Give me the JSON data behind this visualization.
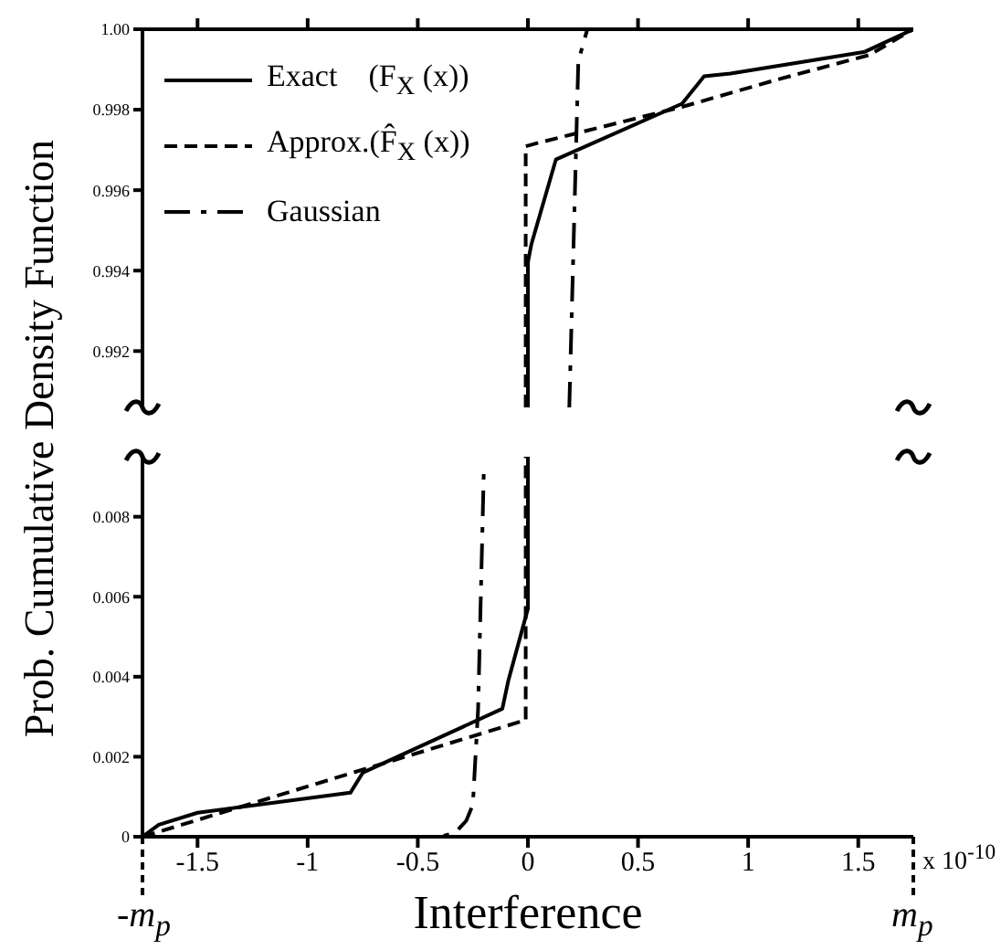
{
  "chart_data": [
    {
      "type": "line",
      "ylabel": "Prob. Cumulative Density Function",
      "xlim": [
        -1.75,
        1.75
      ],
      "xticks": [
        -1.5,
        -1,
        -0.5,
        0,
        0.5,
        1,
        1.5
      ],
      "ylim": [
        0.9906,
        1
      ],
      "yticks": [
        0.992,
        0.994,
        0.996,
        0.998,
        {
          "value": 1,
          "label": "1.00"
        }
      ],
      "tick_labels": "y",
      "legend": "top left",
      "series": [
        {
          "name": "Exact    (F$_{X}$ (x))",
          "color": "#000000",
          "line_style": "solid",
          "x": [
            0,
            0,
            0.016,
            0.127,
            0.7,
            0.8,
            0.92,
            1.53,
            1.75
          ],
          "values": [
            0.9906,
            0.99421,
            0.99466,
            0.99676,
            0.99815,
            0.99883,
            0.9989,
            0.99944,
            1
          ]
        },
        {
          "name": "Approx.(F̂$_{X}$ (x))",
          "color": "#000000",
          "line_style": "dashed",
          "x": [
            -0.01,
            -0.01,
            0.05,
            0.7,
            1.14,
            1.55,
            1.75
          ],
          "values": [
            0.9906,
            0.99709,
            0.99718,
            0.99807,
            0.99876,
            0.99936,
            1
          ]
        },
        {
          "name": "Gaussian",
          "color": "#000000",
          "line_style": "dashdot",
          "x": [
            0.188,
            0.229,
            0.27,
            1.75
          ],
          "values": [
            0.9906,
            0.99921,
            1,
            1
          ]
        }
      ]
    },
    {
      "type": "line",
      "xlabel": "Interference",
      "xlim": [
        -1.75,
        1.75
      ],
      "xticks": [
        -1.5,
        -1,
        -0.5,
        0,
        0.5,
        1,
        1.5
      ],
      "ylim": [
        0,
        0.0095
      ],
      "yticks": [
        0,
        0.002,
        0.004,
        0.006,
        0.008
      ],
      "annotations": [
        "x 10$^{-10}$",
        "-m$_{p}$",
        "m$_{p}$"
      ],
      "series": [
        {
          "color": "#000000",
          "line_style": "solid",
          "x": [
            -1.75,
            -1.676,
            -1.5,
            -0.806,
            -0.75,
            -0.116,
            -0.089,
            0,
            0
          ],
          "values": [
            0,
            0.0003,
            0.0006,
            0.0011,
            0.0016,
            0.0032,
            0.0039,
            0.0057,
            0.0095
          ]
        },
        {
          "color": "#000000",
          "line_style": "dashed",
          "x": [
            -1.75,
            -0.02,
            -0.01,
            -0.01
          ],
          "values": [
            0,
            0.0029,
            0.0029,
            0.0095
          ]
        },
        {
          "color": "#000000",
          "line_style": "dashdot",
          "x": [
            -1.75,
            -0.4,
            -0.33,
            -0.28,
            -0.25,
            -0.226,
            -0.2
          ],
          "values": [
            0,
            0,
            0.0001,
            0.0004,
            0.0008,
            0.0032,
            0.0092
          ]
        }
      ]
    }
  ]
}
